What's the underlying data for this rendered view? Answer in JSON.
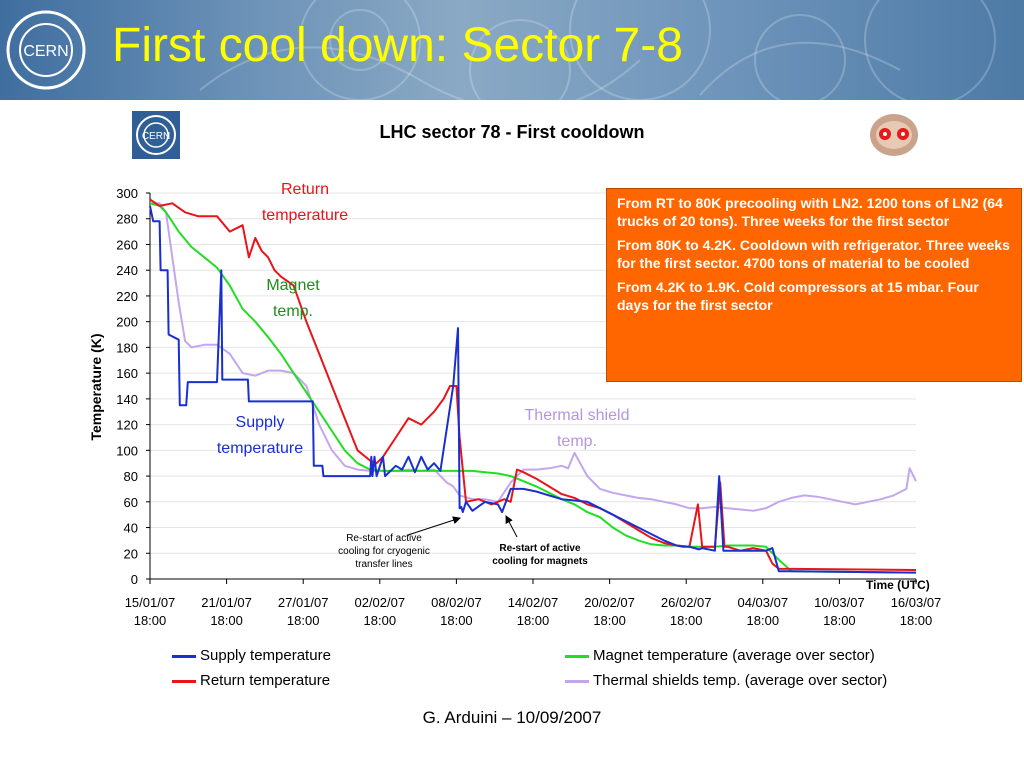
{
  "header": {
    "title": "First cool down: Sector 7-8",
    "logo_text": "CERN"
  },
  "colors": {
    "supply": "#1a2fd0",
    "return": "#e8141a",
    "magnet": "#22dd22",
    "thermal": "#c4a6ee",
    "info_box": "#ff6600",
    "title": "#ffff00"
  },
  "chart_data": {
    "type": "line",
    "title": "LHC sector 78 - First cooldown",
    "xlabel": "Time (UTC)",
    "ylabel": "Temperature (K)",
    "ylim": [
      0,
      300
    ],
    "yticks": [
      0,
      20,
      40,
      60,
      80,
      100,
      120,
      140,
      160,
      180,
      200,
      220,
      240,
      260,
      280,
      300
    ],
    "xlim": [
      "15/01/07 18:00",
      "16/03/07 18:00"
    ],
    "xticks": [
      {
        "date": "15/01/07",
        "time": "18:00"
      },
      {
        "date": "21/01/07",
        "time": "18:00"
      },
      {
        "date": "27/01/07",
        "time": "18:00"
      },
      {
        "date": "02/02/07",
        "time": "18:00"
      },
      {
        "date": "08/02/07",
        "time": "18:00"
      },
      {
        "date": "14/02/07",
        "time": "18:00"
      },
      {
        "date": "20/02/07",
        "time": "18:00"
      },
      {
        "date": "26/02/07",
        "time": "18:00"
      },
      {
        "date": "04/03/07",
        "time": "18:00"
      },
      {
        "date": "10/03/07",
        "time": "18:00"
      },
      {
        "date": "16/03/07",
        "time": "18:00"
      }
    ],
    "grid": true,
    "legend_position": "bottom",
    "series": [
      {
        "name": "Supply temperature",
        "color": "#1a2fd0",
        "x": [
          "15/01/07 18:00",
          "16/01/07 00:00",
          "16/01/07 12:00",
          "16/01/07 14:00",
          "17/01/07 03:00",
          "17/01/07 05:00",
          "18/01/07 00:00",
          "18/01/07 02:00",
          "18/01/07 14:00",
          "18/01/07 17:00",
          "20/01/07 18:00",
          "21/01/07 00:00",
          "21/01/07 08:00",
          "21/01/07 10:00",
          "21/01/07 14:00",
          "23/01/07 10:00",
          "23/01/07 12:00",
          "27/01/07 00:00",
          "28/01/07 12:00",
          "28/01/07 14:00",
          "29/01/07 06:00",
          "29/01/07 08:00",
          "29/01/07 21:00",
          "30/01/07 00:00",
          "02/02/07 00:00",
          "02/02/07 02:00",
          "02/02/07 04:00",
          "02/02/07 08:00",
          "02/02/07 12:00",
          "03/02/07 00:00",
          "03/02/07 04:00",
          "04/02/07 00:00",
          "04/02/07 12:00",
          "05/02/07 00:00",
          "05/02/07 12:00",
          "06/02/07 00:00",
          "06/02/07 12:00",
          "07/02/07 00:00",
          "07/02/07 12:00",
          "08/02/07 12:00",
          "08/02/07 21:00",
          "09/02/07 00:00",
          "09/02/07 03:00",
          "09/02/07 06:00",
          "09/02/07 12:00",
          "10/02/07 00:00",
          "11/02/07 00:00",
          "12/02/07 00:00",
          "12/02/07 08:00",
          "13/02/07 00:00",
          "13/02/07 12:00",
          "13/02/07 21:00",
          "14/02/07 00:00",
          "15/02/07 00:00",
          "16/02/07 00:00",
          "17/02/07 00:00",
          "19/02/07 00:00",
          "20/02/07 00:00",
          "21/02/07 00:00",
          "22/02/07 00:00",
          "23/02/07 00:00",
          "24/02/07 00:00",
          "25/02/07 00:00",
          "26/02/07 00:00",
          "26/02/07 12:00",
          "27/02/07 00:00",
          "27/02/07 18:00",
          "28/02/07 00:00",
          "01/03/07 00:00",
          "01/03/07 08:00",
          "01/03/07 16:00",
          "02/03/07 00:00",
          "02/03/07 12:00",
          "03/03/07 00:00",
          "04/03/07 00:00",
          "05/03/07 00:00",
          "05/03/07 12:00",
          "06/03/07 00:00",
          "06/03/07 12:00",
          "07/03/07 00:00",
          "16/03/07 18:00"
        ],
        "values": [
          290,
          278,
          278,
          240,
          240,
          190,
          186,
          135,
          135,
          153,
          153,
          153,
          240,
          155,
          155,
          155,
          138,
          138,
          138,
          88,
          88,
          80,
          80,
          80,
          80,
          95,
          80,
          95,
          80,
          95,
          80,
          88,
          85,
          95,
          83,
          95,
          85,
          90,
          84,
          150,
          195,
          55,
          56,
          52,
          60,
          53,
          60,
          58,
          52,
          70,
          70,
          70,
          70,
          68,
          65,
          62,
          60,
          55,
          50,
          45,
          40,
          35,
          30,
          26,
          25,
          25,
          23,
          24,
          22,
          80,
          22,
          22,
          22,
          22,
          22,
          22,
          24,
          6,
          6,
          6,
          5
        ]
      },
      {
        "name": "Return temperature",
        "color": "#e8141a",
        "x": [
          "15/01/07 18:00",
          "16/01/07 12:00",
          "17/01/07 12:00",
          "18/01/07 12:00",
          "19/01/07 12:00",
          "20/01/07 00:00",
          "21/01/07 00:00",
          "22/01/07 00:00",
          "23/01/07 00:00",
          "23/01/07 12:00",
          "24/01/07 00:00",
          "24/01/07 12:00",
          "25/01/07 00:00",
          "25/01/07 12:00",
          "26/01/07 00:00",
          "27/01/07 00:00",
          "28/01/07 00:00",
          "29/01/07 00:00",
          "30/01/07 00:00",
          "31/01/07 00:00",
          "01/02/07 00:00",
          "02/02/07 00:00",
          "02/02/07 12:00",
          "03/02/07 00:00",
          "04/02/07 00:00",
          "05/02/07 00:00",
          "06/02/07 00:00",
          "07/02/07 00:00",
          "07/02/07 18:00",
          "08/02/07 06:00",
          "08/02/07 18:00",
          "09/02/07 00:00",
          "09/02/07 12:00",
          "10/02/07 12:00",
          "11/02/07 12:00",
          "12/02/07 12:00",
          "13/02/07 00:00",
          "13/02/07 12:00",
          "14/02/07 00:00",
          "15/02/07 00:00",
          "16/02/07 00:00",
          "17/02/07 00:00",
          "18/02/07 00:00",
          "19/02/07 00:00",
          "20/02/07 00:00",
          "21/02/07 00:00",
          "22/02/07 00:00",
          "23/02/07 00:00",
          "24/02/07 00:00",
          "25/02/07 00:00",
          "26/02/07 00:00",
          "27/02/07 00:00",
          "27/02/07 16:00",
          "28/02/07 00:00",
          "01/03/07 00:00",
          "01/03/07 10:00",
          "01/03/07 18:00",
          "02/03/07 00:00",
          "03/03/07 00:00",
          "04/03/07 00:00",
          "05/03/07 00:00",
          "05/03/07 12:00",
          "06/03/07 00:00",
          "16/03/07 18:00"
        ],
        "values": [
          295,
          290,
          292,
          285,
          282,
          282,
          282,
          270,
          275,
          250,
          265,
          255,
          250,
          240,
          235,
          228,
          200,
          175,
          150,
          125,
          100,
          92,
          90,
          95,
          110,
          125,
          120,
          130,
          140,
          150,
          150,
          110,
          60,
          62,
          58,
          62,
          60,
          85,
          83,
          78,
          72,
          66,
          63,
          58,
          55,
          50,
          44,
          38,
          32,
          28,
          26,
          25,
          58,
          25,
          25,
          75,
          25,
          25,
          22,
          24,
          22,
          12,
          8,
          7
        ]
      },
      {
        "name": "Magnet temperature (average over sector)",
        "color": "#22dd22",
        "x": [
          "15/01/07 18:00",
          "16/01/07 12:00",
          "17/01/07 00:00",
          "18/01/07 00:00",
          "19/01/07 00:00",
          "20/01/07 00:00",
          "21/01/07 00:00",
          "22/01/07 00:00",
          "23/01/07 00:00",
          "24/01/07 00:00",
          "25/01/07 00:00",
          "26/01/07 00:00",
          "27/01/07 00:00",
          "28/01/07 00:00",
          "29/01/07 00:00",
          "30/01/07 00:00",
          "31/01/07 00:00",
          "01/02/07 00:00",
          "02/02/07 00:00",
          "03/02/07 00:00",
          "04/02/07 00:00",
          "05/02/07 00:00",
          "06/02/07 00:00",
          "07/02/07 00:00",
          "08/02/07 00:00",
          "09/02/07 00:00",
          "10/02/07 00:00",
          "11/02/07 00:00",
          "12/02/07 00:00",
          "13/02/07 00:00",
          "14/02/07 00:00",
          "15/02/07 00:00",
          "16/02/07 00:00",
          "17/02/07 00:00",
          "18/02/07 00:00",
          "19/02/07 00:00",
          "20/02/07 00:00",
          "21/02/07 00:00",
          "22/02/07 00:00",
          "23/02/07 00:00",
          "24/02/07 00:00",
          "25/02/07 00:00",
          "26/02/07 00:00",
          "27/02/07 00:00",
          "28/02/07 00:00",
          "01/03/07 00:00",
          "02/03/07 00:00",
          "03/03/07 00:00",
          "04/03/07 00:00",
          "05/03/07 00:00",
          "06/03/07 00:00",
          "07/03/07 00:00",
          "16/03/07 18:00"
        ],
        "values": [
          292,
          290,
          285,
          270,
          258,
          250,
          242,
          228,
          210,
          200,
          188,
          175,
          160,
          145,
          130,
          115,
          100,
          90,
          85,
          84,
          84,
          84,
          84,
          84,
          84,
          84,
          84,
          83,
          82,
          80,
          76,
          72,
          67,
          62,
          58,
          52,
          48,
          40,
          34,
          30,
          27,
          26,
          26,
          25,
          25,
          25,
          26,
          26,
          26,
          25,
          15,
          6,
          5
        ]
      },
      {
        "name": "Thermal shields temp. (average over sector)",
        "color": "#c4a6ee",
        "x": [
          "15/01/07 18:00",
          "16/01/07 12:00",
          "17/01/07 00:00",
          "17/01/07 12:00",
          "18/01/07 00:00",
          "18/01/07 12:00",
          "19/01/07 00:00",
          "20/01/07 00:00",
          "21/01/07 00:00",
          "22/01/07 00:00",
          "23/01/07 00:00",
          "24/01/07 00:00",
          "25/01/07 00:00",
          "26/01/07 00:00",
          "27/01/07 00:00",
          "28/01/07 00:00",
          "29/01/07 00:00",
          "30/01/07 00:00",
          "31/01/07 00:00",
          "01/02/07 00:00",
          "02/02/07 00:00",
          "03/02/07 00:00",
          "04/02/07 00:00",
          "05/02/07 00:00",
          "06/02/07 00:00",
          "07/02/07 00:00",
          "08/02/07 00:00",
          "08/02/07 12:00",
          "09/02/07 00:00",
          "10/02/07 00:00",
          "11/02/07 00:00",
          "12/02/07 00:00",
          "13/02/07 00:00",
          "14/02/07 00:00",
          "15/02/07 00:00",
          "16/02/07 00:00",
          "17/02/07 00:00",
          "17/02/07 12:00",
          "18/02/07 00:00",
          "19/02/07 00:00",
          "20/02/07 00:00",
          "21/02/07 00:00",
          "22/02/07 00:00",
          "23/02/07 00:00",
          "24/02/07 00:00",
          "25/02/07 00:00",
          "26/02/07 00:00",
          "27/02/07 00:00",
          "28/02/07 00:00",
          "01/03/07 00:00",
          "02/03/07 00:00",
          "03/03/07 00:00",
          "04/03/07 00:00",
          "05/03/07 00:00",
          "06/03/07 00:00",
          "07/03/07 00:00",
          "08/03/07 00:00",
          "09/03/07 00:00",
          "10/03/07 00:00",
          "11/03/07 00:00",
          "12/03/07 00:00",
          "13/03/07 00:00",
          "14/03/07 00:00",
          "15/03/07 00:00",
          "16/03/07 00:00",
          "16/03/07 06:00",
          "16/03/07 18:00"
        ],
        "values": [
          292,
          292,
          285,
          250,
          215,
          185,
          180,
          182,
          182,
          175,
          160,
          158,
          162,
          162,
          160,
          150,
          120,
          100,
          88,
          85,
          84,
          84,
          84,
          85,
          84,
          85,
          75,
          72,
          65,
          62,
          62,
          60,
          75,
          85,
          85,
          86,
          88,
          86,
          98,
          80,
          70,
          67,
          65,
          63,
          62,
          60,
          58,
          55,
          55,
          56,
          55,
          54,
          53,
          55,
          60,
          63,
          65,
          64,
          62,
          60,
          58,
          60,
          62,
          65,
          70,
          86,
          76
        ]
      }
    ]
  },
  "info_box": {
    "paragraphs": [
      "From RT to 80K precooling with LN2. 1200 tons of LN2 (64 trucks of 20 tons). Three weeks for the first sector",
      "From 80K to 4.2K. Cooldown with refrigerator. Three weeks for the first sector. 4700 tons of material to be cooled",
      "From 4.2K to 1.9K. Cold compressors at 15 mbar. Four days for the first sector"
    ]
  },
  "series_labels": {
    "return": [
      "Return",
      "temperature"
    ],
    "magnet": [
      "Magnet",
      "temp."
    ],
    "supply": [
      "Supply",
      "temperature"
    ],
    "thermal": [
      "Thermal shield",
      "temp."
    ]
  },
  "annotations": {
    "transfer_lines": [
      "Re-start of active",
      "cooling for cryogenic",
      "transfer lines"
    ],
    "magnets": [
      "Re-start of active",
      "cooling for magnets"
    ]
  },
  "legend": {
    "supply": "Supply temperature",
    "return": "Return temperature",
    "magnet": "Magnet temperature (average over sector)",
    "thermal": "Thermal shields temp. (average over sector)"
  },
  "footer": "G. Arduini – 10/09/2007"
}
